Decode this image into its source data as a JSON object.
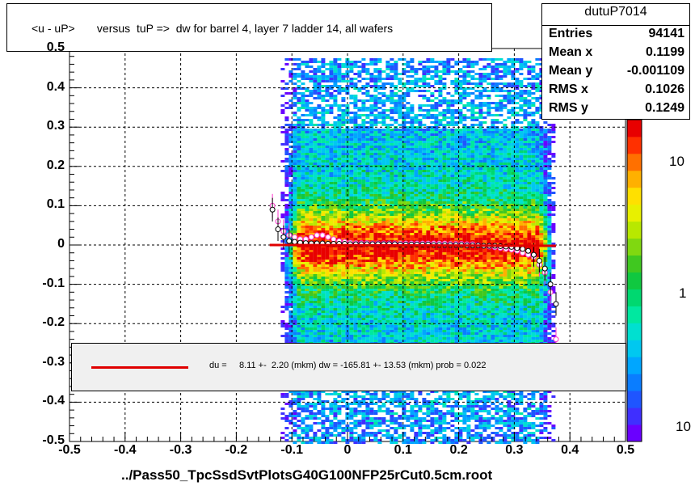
{
  "title": "<u - uP>       versus  tuP =>  dw for barrel 4, layer 7 ladder 14, all wafers",
  "x_axis_title": "../Pass50_TpcSsdSvtPlotsG40G100NFP25rCut0.5cm.root",
  "stats": {
    "name": "dutuP7014",
    "rows": [
      {
        "label": "Entries",
        "value": "94141"
      },
      {
        "label": "Mean x",
        "value": "0.1199"
      },
      {
        "label": "Mean y",
        "value": "-0.001109"
      },
      {
        "label": "RMS x",
        "value": "0.1026"
      },
      {
        "label": "RMS y",
        "value": "0.1249"
      }
    ]
  },
  "fit": {
    "text": "du =     8.11 +-  2.20 (mkm) dw = -165.81 +- 13.53 (mkm) prob = 0.022",
    "line_color": "#e00000"
  },
  "x_ticks": [
    "-0.5",
    "-0.4",
    "-0.3",
    "-0.2",
    "-0.1",
    "0",
    "0.1",
    "0.2",
    "0.3",
    "0.4",
    "0.5"
  ],
  "y_ticks": [
    "-0.5",
    "-0.4",
    "-0.3",
    "-0.2",
    "-0.1",
    "0",
    "0.1",
    "0.2",
    "0.3",
    "0.4",
    "0.5"
  ],
  "colorbar_labels": [
    "10",
    "1",
    "10"
  ],
  "chart_data": {
    "type": "heatmap",
    "title": "<u - uP>       versus  tuP =>  dw for barrel 4, layer 7 ladder 14, all wafers",
    "xlabel": "../Pass50_TpcSsdSvtPlotsG40G100NFP25rCut0.5cm.root",
    "ylabel": "",
    "xlim": [
      -0.5,
      0.5
    ],
    "ylim": [
      -0.5,
      0.5
    ],
    "grid": true,
    "colorbar_scale": "log",
    "density_x_range": [
      -0.12,
      0.37
    ],
    "fit_line": {
      "x": [
        -0.14,
        0.375
      ],
      "y": [
        0.0,
        -0.002
      ],
      "color": "#e00000"
    },
    "profile_black": {
      "x": [
        -0.135,
        -0.125,
        -0.115,
        -0.105,
        -0.095,
        -0.085,
        -0.075,
        -0.065,
        -0.055,
        -0.045,
        -0.035,
        -0.025,
        -0.015,
        -0.005,
        0.005,
        0.015,
        0.025,
        0.035,
        0.045,
        0.055,
        0.065,
        0.075,
        0.085,
        0.095,
        0.105,
        0.115,
        0.125,
        0.135,
        0.145,
        0.155,
        0.165,
        0.175,
        0.185,
        0.195,
        0.205,
        0.215,
        0.225,
        0.235,
        0.245,
        0.255,
        0.265,
        0.275,
        0.285,
        0.295,
        0.305,
        0.315,
        0.325,
        0.335,
        0.345,
        0.355,
        0.365,
        0.375
      ],
      "y": [
        0.09,
        0.04,
        0.02,
        0.01,
        0.008,
        0.006,
        0.005,
        0.004,
        0.004,
        0.004,
        0.003,
        0.003,
        0.003,
        0.003,
        0.002,
        0.002,
        0.002,
        0.002,
        0.002,
        0.002,
        0.002,
        0.002,
        0.002,
        0.001,
        0.001,
        0.001,
        0.001,
        0.001,
        0.001,
        0.0,
        0.0,
        0.0,
        0.0,
        0.0,
        0.0,
        -0.001,
        -0.001,
        -0.001,
        -0.002,
        -0.002,
        -0.002,
        -0.003,
        -0.004,
        -0.005,
        -0.008,
        -0.01,
        -0.015,
        -0.025,
        -0.04,
        -0.06,
        -0.1,
        -0.15
      ]
    },
    "profile_magenta": {
      "x": [
        -0.135,
        -0.125,
        -0.115,
        -0.105,
        -0.095,
        -0.085,
        -0.075,
        -0.065,
        -0.055,
        -0.045,
        -0.035,
        -0.025,
        -0.015,
        -0.005,
        0.005,
        0.015,
        0.025,
        0.035,
        0.045,
        0.055,
        0.065,
        0.075,
        0.085,
        0.095,
        0.105,
        0.115,
        0.125,
        0.135,
        0.145,
        0.155,
        0.165,
        0.175,
        0.185,
        0.195,
        0.205,
        0.215,
        0.225,
        0.235,
        0.245,
        0.255,
        0.265,
        0.275,
        0.285,
        0.295,
        0.305,
        0.315,
        0.325,
        0.335,
        0.345,
        0.355,
        0.365,
        0.375
      ],
      "y": [
        0.1,
        0.06,
        0.035,
        0.025,
        0.02,
        0.015,
        0.015,
        0.02,
        0.025,
        0.025,
        0.02,
        0.015,
        0.01,
        0.008,
        0.006,
        0.005,
        0.005,
        0.005,
        0.004,
        0.004,
        0.004,
        0.004,
        0.004,
        0.004,
        0.004,
        0.004,
        0.004,
        0.004,
        0.004,
        0.004,
        0.004,
        0.004,
        0.003,
        0.003,
        0.003,
        0.002,
        0.002,
        0.0,
        -0.002,
        -0.004,
        -0.006,
        -0.008,
        -0.01,
        -0.012,
        -0.015,
        -0.02,
        -0.025,
        -0.03,
        -0.05,
        -0.07,
        -0.12,
        -0.24
      ]
    }
  }
}
